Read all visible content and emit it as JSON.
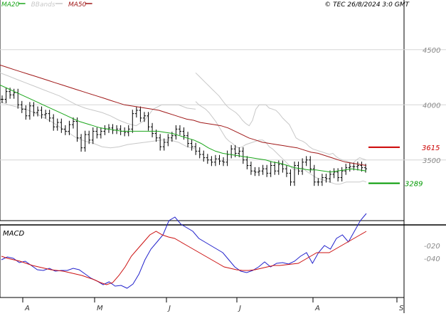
{
  "chart_data": [
    {
      "type": "ohlc",
      "legend": [
        {
          "label": "MA20",
          "color": "#1aa61a"
        },
        {
          "label": "BBands",
          "color": "#c8c8c8"
        },
        {
          "label": "MA50",
          "color": "#a01818"
        }
      ],
      "copyright": "© TEC 26/8/2024 3:0 GMT",
      "ylim": [
        2950,
        4950
      ],
      "y_ticks": [
        "4500",
        "4000",
        "3500"
      ],
      "grid": true,
      "x_ticks": [
        "A",
        "M",
        "J",
        "J",
        "A",
        "S"
      ],
      "price": [
        4050,
        4120,
        4090,
        4110,
        4000,
        3960,
        3900,
        3990,
        3930,
        3950,
        3910,
        3920,
        3880,
        3800,
        3840,
        3780,
        3760,
        3820,
        3850,
        3700,
        3610,
        3730,
        3680,
        3760,
        3730,
        3760,
        3780,
        3790,
        3770,
        3780,
        3760,
        3750,
        3780,
        3920,
        3950,
        3880,
        3900,
        3800,
        3740,
        3700,
        3620,
        3660,
        3700,
        3720,
        3780,
        3760,
        3720,
        3650,
        3620,
        3580,
        3550,
        3520,
        3500,
        3480,
        3510,
        3490,
        3480,
        3550,
        3600,
        3560,
        3580,
        3500,
        3450,
        3400,
        3390,
        3400,
        3420,
        3380,
        3450,
        3400,
        3460,
        3420,
        3380,
        3300,
        3450,
        3400,
        3480,
        3500,
        3420,
        3300,
        3300,
        3340,
        3330,
        3370,
        3390,
        3340,
        3400,
        3430,
        3440,
        3440,
        3450,
        3430,
        3420
      ],
      "ma20": [
        4180,
        4150,
        4120,
        4090,
        4060,
        4030,
        4000,
        3970,
        3940,
        3910,
        3880,
        3850,
        3830,
        3810,
        3790,
        3780,
        3770,
        3760,
        3760,
        3760,
        3760,
        3760,
        3760,
        3750,
        3740,
        3720,
        3700,
        3680,
        3650,
        3610,
        3580,
        3560,
        3550,
        3540,
        3530,
        3520,
        3510,
        3500,
        3480,
        3470,
        3450,
        3430,
        3420,
        3410,
        3410,
        3400,
        3390,
        3400,
        3410,
        3420,
        3410,
        3400
      ],
      "ma50": [
        4360,
        4340,
        4320,
        4300,
        4280,
        4260,
        4240,
        4220,
        4200,
        4180,
        4160,
        4140,
        4120,
        4100,
        4080,
        4060,
        4040,
        4020,
        4000,
        3990,
        3980,
        3970,
        3960,
        3950,
        3930,
        3910,
        3890,
        3870,
        3860,
        3840,
        3830,
        3820,
        3810,
        3790,
        3760,
        3730,
        3700,
        3680,
        3660,
        3650,
        3640,
        3630,
        3620,
        3610,
        3590,
        3570,
        3560,
        3540,
        3520,
        3500,
        3480,
        3470,
        3460,
        3450
      ],
      "bb_upper": [
        4290,
        4260,
        4230,
        4200,
        4170,
        4140,
        4110,
        4080,
        4040,
        4000,
        3970,
        3950,
        3930,
        3900,
        3860,
        3830,
        3810,
        3860,
        3960,
        4000,
        4000,
        4000,
        3970,
        3960,
        3950,
        3920,
        3880,
        3850,
        3820,
        3760,
        3700,
        3680,
        3670,
        3650,
        3620,
        3600,
        3590,
        3580,
        3570,
        3560,
        3550,
        3560,
        3530,
        3510,
        3500,
        3490,
        3480,
        3470,
        3500,
        3520,
        3510,
        3500
      ],
      "bb_lower": [
        4030,
        4000,
        3980,
        3960,
        3930,
        3890,
        3850,
        3800,
        3750,
        3700,
        3670,
        3650,
        3620,
        3610,
        3620,
        3640,
        3650,
        3660,
        3670,
        3680,
        3680,
        3660,
        3620,
        3600,
        3570,
        3540,
        3510,
        3480,
        3450,
        3420,
        3410,
        3420,
        3430,
        3400,
        3380,
        3360,
        3340,
        3330,
        3320,
        3310,
        3300,
        3290,
        3280,
        3280,
        3290,
        3300,
        3300,
        3300,
        3300,
        3300,
        3310,
        3300
      ],
      "levels": [
        {
          "label": "3615",
          "value": 3615,
          "color": "#cc0000"
        },
        {
          "label": "3289",
          "value": 3289,
          "color": "#009900"
        }
      ]
    },
    {
      "type": "line",
      "title": "MACD",
      "y_ticks": [
        "-020",
        "-040"
      ],
      "macd": [
        -40,
        -36,
        -38,
        -44,
        -42,
        -48,
        -54,
        -55,
        -52,
        -56,
        -55,
        -55,
        -52,
        -54,
        -60,
        -66,
        -70,
        -75,
        -71,
        -77,
        -76,
        -80,
        -74,
        -60,
        -40,
        -25,
        -15,
        -5,
        15,
        20,
        10,
        5,
        0,
        -10,
        -15,
        -20,
        -25,
        -30,
        -40,
        -50,
        -56,
        -58,
        -55,
        -50,
        -43,
        -50,
        -45,
        -44,
        -46,
        -42,
        -35,
        -30,
        -45,
        -30,
        -20,
        -25,
        -10,
        -5,
        -15,
        0,
        15,
        25
      ],
      "signal": [
        -35,
        -38,
        -40,
        -42,
        -45,
        -48,
        -50,
        -52,
        -54,
        -55,
        -56,
        -58,
        -60,
        -62,
        -65,
        -68,
        -72,
        -75,
        -72,
        -62,
        -50,
        -35,
        -25,
        -15,
        -5,
        0,
        -5,
        -8,
        -10,
        -15,
        -20,
        -25,
        -30,
        -35,
        -40,
        -45,
        -50,
        -52,
        -54,
        -55,
        -55,
        -54,
        -52,
        -50,
        -48,
        -48,
        -47,
        -46,
        -45,
        -40,
        -35,
        -30,
        -30,
        -30,
        -25,
        -20,
        -15,
        -10,
        -5,
        0
      ]
    }
  ]
}
